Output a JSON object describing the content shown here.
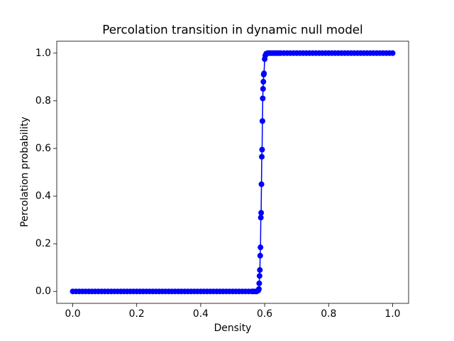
{
  "chart_data": {
    "type": "line",
    "title": "Percolation transition in dynamic null model",
    "xlabel": "Density",
    "ylabel": "Percolation probability",
    "color": "#0000ff",
    "marker": "o",
    "x": [
      0,
      0.01,
      0.02,
      0.03,
      0.04,
      0.05,
      0.06,
      0.07,
      0.08,
      0.09,
      0.1,
      0.11,
      0.12,
      0.13,
      0.14,
      0.15,
      0.16,
      0.17,
      0.18,
      0.19,
      0.2,
      0.21,
      0.22,
      0.23,
      0.24,
      0.25,
      0.26,
      0.27,
      0.28,
      0.29,
      0.3,
      0.31,
      0.32,
      0.33,
      0.34,
      0.35,
      0.36,
      0.37,
      0.38,
      0.39,
      0.4,
      0.41,
      0.42,
      0.43,
      0.44,
      0.45,
      0.46,
      0.47,
      0.48,
      0.49,
      0.5,
      0.51,
      0.52,
      0.53,
      0.54,
      0.55,
      0.56,
      0.565,
      0.57,
      0.575,
      0.58,
      0.582,
      0.583,
      0.584,
      0.585,
      0.586,
      0.587,
      0.588,
      0.589,
      0.59,
      0.591,
      0.592,
      0.593,
      0.594,
      0.595,
      0.596,
      0.597,
      0.598,
      0.6,
      0.602,
      0.605,
      0.61,
      0.615,
      0.62,
      0.625,
      0.63,
      0.635,
      0.64,
      0.645,
      0.65,
      0.66,
      0.67,
      0.68,
      0.69,
      0.7,
      0.71,
      0.72,
      0.73,
      0.74,
      0.75,
      0.76,
      0.77,
      0.78,
      0.79,
      0.8,
      0.81,
      0.82,
      0.83,
      0.84,
      0.85,
      0.86,
      0.87,
      0.88,
      0.89,
      0.9,
      0.91,
      0.92,
      0.93,
      0.94,
      0.95,
      0.96,
      0.97,
      0.98,
      0.99,
      1.0
    ],
    "values": [
      0,
      0,
      0,
      0,
      0,
      0,
      0,
      0,
      0,
      0,
      0,
      0,
      0,
      0,
      0,
      0,
      0,
      0,
      0,
      0,
      0,
      0,
      0,
      0,
      0,
      0,
      0,
      0,
      0,
      0,
      0,
      0,
      0,
      0,
      0,
      0,
      0,
      0,
      0,
      0,
      0,
      0,
      0,
      0,
      0,
      0,
      0,
      0,
      0,
      0,
      0,
      0,
      0,
      0,
      0,
      0,
      0,
      0,
      0,
      0,
      0.004,
      0.01,
      0.034,
      0.065,
      0.09,
      0.15,
      0.185,
      0.31,
      0.33,
      0.45,
      0.565,
      0.595,
      0.715,
      0.81,
      0.85,
      0.88,
      0.91,
      0.915,
      0.975,
      0.99,
      0.998,
      1,
      1,
      1,
      1,
      1,
      1,
      1,
      1,
      1,
      1,
      1,
      1,
      1,
      1,
      1,
      1,
      1,
      1,
      1,
      1,
      1,
      1,
      1,
      1,
      1,
      1,
      1,
      1,
      1,
      1,
      1,
      1,
      1,
      1,
      1,
      1,
      1,
      1,
      1,
      1,
      1,
      1,
      1,
      1
    ],
    "xlim": [
      -0.05,
      1.05
    ],
    "ylim": [
      -0.05,
      1.05
    ],
    "xticks": [
      {
        "value": 0,
        "label": "0.0"
      },
      {
        "value": 0.2,
        "label": "0.2"
      },
      {
        "value": 0.4,
        "label": "0.4"
      },
      {
        "value": 0.6,
        "label": "0.6"
      },
      {
        "value": 0.8,
        "label": "0.8"
      },
      {
        "value": 1,
        "label": "1.0"
      }
    ],
    "yticks": [
      {
        "value": 0,
        "label": "0.0"
      },
      {
        "value": 0.2,
        "label": "0.2"
      },
      {
        "value": 0.4,
        "label": "0.4"
      },
      {
        "value": 0.6,
        "label": "0.6"
      },
      {
        "value": 0.8,
        "label": "0.8"
      },
      {
        "value": 1,
        "label": "1.0"
      }
    ]
  }
}
